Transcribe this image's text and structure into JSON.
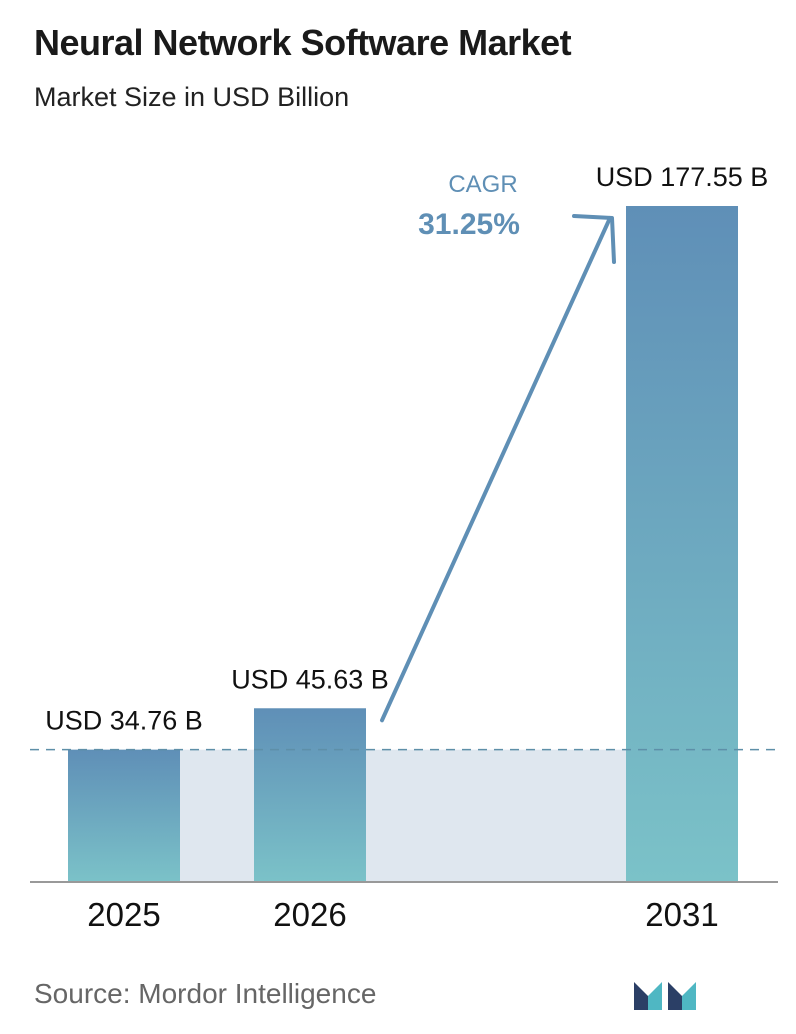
{
  "title": "Neural Network Software Market",
  "subtitle": "Market Size in USD Billion",
  "source": "Source:  Mordor Intelligence",
  "cagr": {
    "label": "CAGR",
    "value": "31.25%"
  },
  "colors": {
    "bar_top": "#5f8fb7",
    "bar_bottom": "#7bc2c8",
    "band": "#dfe7ef",
    "dash": "#5e8fa8",
    "cagr": "#5f8fb5",
    "axis": "#999999"
  },
  "logo": "mordor-intelligence-logo",
  "chart_data": {
    "type": "bar",
    "categories": [
      "2025",
      "2026",
      "2031"
    ],
    "values": [
      34.76,
      45.63,
      177.55
    ],
    "value_labels": [
      "USD 34.76 B",
      "USD 45.63 B",
      "USD 177.55 B"
    ],
    "title": "Neural Network Software Market",
    "subtitle": "Market Size in USD Billion",
    "ylim": [
      0,
      177.55
    ],
    "grid": false,
    "legend": "none"
  }
}
